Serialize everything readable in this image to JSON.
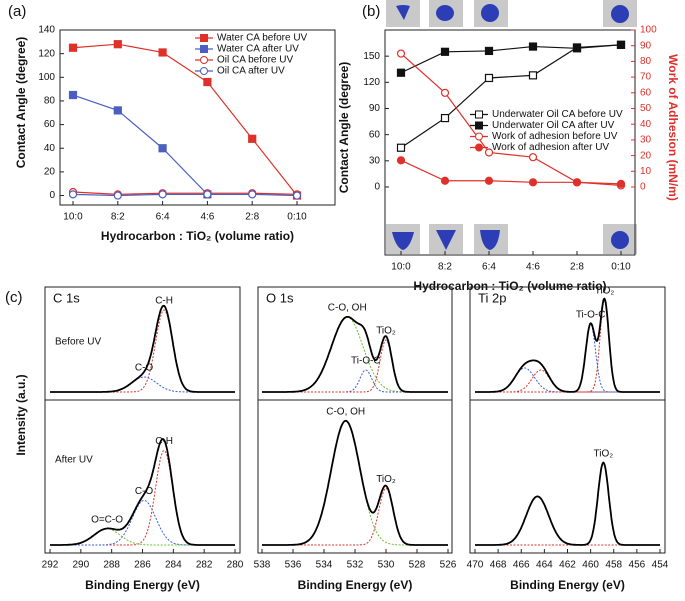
{
  "chart_data": [
    {
      "type": "line",
      "label": "(a)",
      "xlabel": "Hydrocarbon : TiO₂ (volume ratio)",
      "ylabel": "Contact Angle (degree)",
      "categories": [
        "10:0",
        "8:2",
        "6:4",
        "4:6",
        "2:8",
        "0:10"
      ],
      "ylim": [
        -8,
        140
      ],
      "yticks": [
        0,
        20,
        40,
        60,
        80,
        100,
        120,
        140
      ],
      "legend": "upper right",
      "series": [
        {
          "name": "Water CA before UV",
          "color": "#e0302a",
          "marker": "square",
          "filled": true,
          "values": [
            125,
            128,
            121,
            96,
            48,
            0
          ]
        },
        {
          "name": "Water CA after UV",
          "color": "#4a5fc1",
          "marker": "square",
          "filled": true,
          "values": [
            85,
            72,
            40,
            1,
            null,
            null
          ]
        },
        {
          "name": "Oil CA before UV",
          "color": "#e0302a",
          "marker": "circle",
          "filled": false,
          "values": [
            3,
            1,
            2,
            2,
            2,
            1
          ]
        },
        {
          "name": "Oil CA after UV",
          "color": "#4a5fc1",
          "marker": "circle",
          "filled": false,
          "values": [
            1,
            0,
            1,
            1,
            1,
            0
          ]
        }
      ]
    },
    {
      "type": "line",
      "label": "(b)",
      "xlabel": "Hydrocarbon : TiO₂ (volume ratio)",
      "ylabel": "Contact Angle (degree)",
      "y2label": "Work of Adhesion (mN/m)",
      "y2color": "#e0302a",
      "categories": [
        "10:0",
        "8:2",
        "6:4",
        "4:6",
        "2:8",
        "0:10"
      ],
      "ylim": [
        -78,
        180
      ],
      "yticks": [
        0,
        30,
        60,
        90,
        120,
        150
      ],
      "y2lim": [
        -43.3,
        100
      ],
      "y2ticks": [
        0,
        10,
        20,
        30,
        40,
        50,
        60,
        70,
        80,
        90,
        100
      ],
      "legend": "center right",
      "series": [
        {
          "name": "Underwater Oil CA before UV",
          "color": "#111111",
          "marker": "square",
          "filled": false,
          "values": [
            45,
            79,
            125,
            128,
            160,
            163
          ]
        },
        {
          "name": "Underwater Oil CA after UV",
          "color": "#111111",
          "marker": "square",
          "filled": true,
          "values": [
            131,
            155,
            156,
            161,
            159,
            163
          ]
        },
        {
          "name": "Work of adhesion before UV",
          "color": "#e0302a",
          "marker": "circle",
          "filled": false,
          "axis": "y2",
          "values": [
            85,
            60,
            22,
            19,
            3,
            1
          ]
        },
        {
          "name": "Work of adhesion after UV",
          "color": "#e0302a",
          "marker": "circle",
          "filled": true,
          "axis": "y2",
          "values": [
            17,
            4,
            4,
            3,
            3,
            2
          ]
        }
      ]
    },
    {
      "type": "xps",
      "label": "(c)",
      "ylabel": "Intensity (a.u.)",
      "title": "C 1s",
      "xlabel": "Binding Energy (eV)",
      "xlim": [
        292,
        280
      ],
      "xticks": [
        292,
        290,
        288,
        286,
        284,
        282,
        280
      ],
      "spectra": [
        {
          "label": "Before UV",
          "ylim": [
            0,
            100
          ],
          "peaks": [
            {
              "name": "C-H",
              "color": "#d9342b",
              "center": 284.6,
              "height": 82,
              "fwhm": 1.3
            },
            {
              "name": "C-O",
              "color": "#3a5fd0",
              "center": 285.9,
              "height": 15,
              "fwhm": 1.9
            }
          ]
        },
        {
          "label": "After UV",
          "ylim": [
            0,
            100
          ],
          "peaks": [
            {
              "name": "C-H",
              "color": "#d9342b",
              "center": 284.6,
              "height": 70,
              "fwhm": 1.3
            },
            {
              "name": "C-O",
              "color": "#3a5fd0",
              "center": 285.9,
              "height": 33,
              "fwhm": 1.8
            },
            {
              "name": "O=C-O",
              "color": "#6cc02c",
              "center": 288.3,
              "height": 12,
              "fwhm": 2.0
            }
          ]
        }
      ]
    },
    {
      "type": "xps",
      "title": "O 1s",
      "xlabel": "Binding Energy (eV)",
      "xlim": [
        538,
        526
      ],
      "xticks": [
        538,
        536,
        534,
        532,
        530,
        528,
        526
      ],
      "spectra": [
        {
          "ylim": [
            0,
            100
          ],
          "peaks": [
            {
              "name": "C-O, OH",
              "color": "#6cc02c",
              "center": 532.5,
              "height": 75,
              "fwhm": 2.4
            },
            {
              "name": "Ti-O-C",
              "color": "#3a5fd0",
              "center": 531.3,
              "height": 22,
              "fwhm": 0.9
            },
            {
              "name": "TiO₂",
              "color": "#d9342b",
              "center": 530.0,
              "height": 52,
              "fwhm": 0.9
            }
          ]
        },
        {
          "ylim": [
            0,
            100
          ],
          "peaks": [
            {
              "name": "C-O, OH",
              "color": "#6cc02c",
              "center": 532.6,
              "height": 92,
              "fwhm": 2.2
            },
            {
              "name": "TiO₂",
              "color": "#d9342b",
              "center": 530.0,
              "height": 42,
              "fwhm": 1.1
            }
          ]
        }
      ]
    },
    {
      "type": "xps",
      "title": "Ti 2p",
      "xlabel": "Binding Energy (eV)",
      "xlim": [
        470,
        454
      ],
      "xticks": [
        470,
        468,
        466,
        464,
        462,
        460,
        458,
        456,
        454
      ],
      "spectra": [
        {
          "ylim": [
            0,
            100
          ],
          "peaks": [
            {
              "name": null,
              "color": "#3a5fd0",
              "center": 465.7,
              "height": 24,
              "fwhm": 2.0
            },
            {
              "name": null,
              "color": "#d9342b",
              "center": 464.3,
              "height": 22,
              "fwhm": 1.8
            },
            {
              "name": "Ti-O-C",
              "color": "#3a5fd0",
              "center": 460.0,
              "height": 68,
              "fwhm": 1.0
            },
            {
              "name": "TiO₂",
              "color": "#d9342b",
              "center": 458.8,
              "height": 92,
              "fwhm": 0.9
            }
          ]
        },
        {
          "ylim": [
            0,
            100
          ],
          "peaks": [
            {
              "name": null,
              "color": "#d9342b",
              "center": 464.6,
              "height": 36,
              "fwhm": 2.3
            },
            {
              "name": "TiO₂",
              "color": "#d9342b",
              "center": 458.9,
              "height": 61,
              "fwhm": 1.1
            }
          ]
        }
      ]
    }
  ]
}
